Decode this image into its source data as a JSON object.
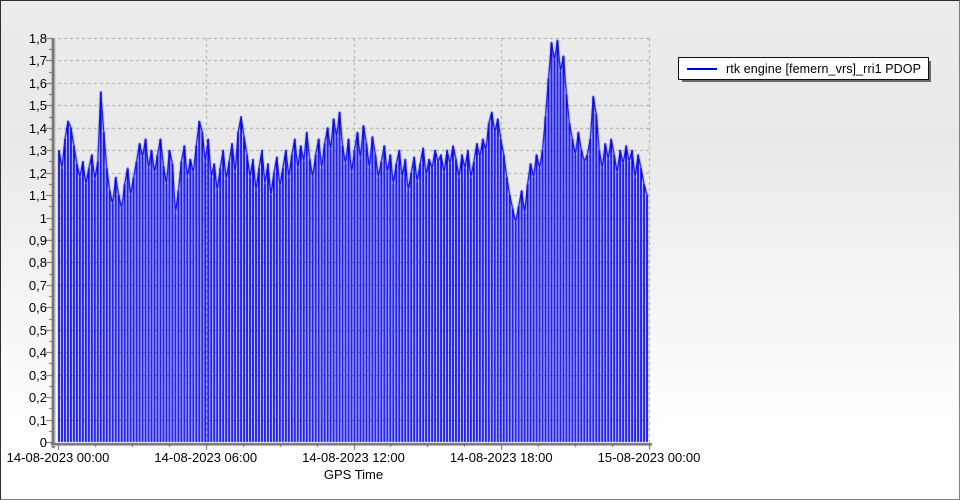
{
  "window": {
    "bg_top_color": "#ececec",
    "bg_bottom_color": "#ffffff",
    "border_color": "#2f2f2f"
  },
  "legend": {
    "label": "rtk engine [femern_vrs]_rri1 PDOP",
    "line_color": "#0000e8",
    "box_bg": "#ffffff",
    "position": "top-right"
  },
  "chart_data": {
    "type": "line",
    "title": "",
    "xlabel": "GPS Time",
    "ylabel": "",
    "x_time_start": "14-08-2023 00:00",
    "x_time_end": "15-08-2023 00:00",
    "x_tick_labels": [
      "14-08-2023 00:00",
      "14-08-2023 06:00",
      "14-08-2023 12:00",
      "14-08-2023 18:00",
      "15-08-2023 00:00"
    ],
    "x_minor_ticks_per_interval": 3,
    "y_tick_labels": [
      "0",
      "0,1",
      "0,2",
      "0,3",
      "0,4",
      "0,5",
      "0,6",
      "0,7",
      "0,8",
      "0,9",
      "1",
      "1,1",
      "1,2",
      "1,3",
      "1,4",
      "1,5",
      "1,6",
      "1,7",
      "1,8"
    ],
    "y_tick_step": 0.1,
    "ylim": [
      0,
      1.8
    ],
    "grid": "dashed",
    "grid_color": "#aaaaaa",
    "axis_color": "#6a6a6a",
    "sample_interval_minutes": 7.3,
    "series": [
      {
        "name": "rtk engine [femern_vrs]_rri1 PDOP",
        "color": "#0000e8",
        "drops_to_zero_between_samples": true,
        "values": [
          1.3,
          1.22,
          1.35,
          1.43,
          1.4,
          1.32,
          1.24,
          1.18,
          1.25,
          1.15,
          1.22,
          1.28,
          1.17,
          1.25,
          1.56,
          1.38,
          1.22,
          1.12,
          1.06,
          1.18,
          1.1,
          1.04,
          1.15,
          1.22,
          1.1,
          1.18,
          1.25,
          1.33,
          1.27,
          1.35,
          1.22,
          1.3,
          1.2,
          1.28,
          1.35,
          1.23,
          1.15,
          1.3,
          1.24,
          1.02,
          1.12,
          1.25,
          1.32,
          1.18,
          1.26,
          1.2,
          1.32,
          1.43,
          1.38,
          1.25,
          1.35,
          1.18,
          1.24,
          1.12,
          1.22,
          1.3,
          1.17,
          1.25,
          1.33,
          1.2,
          1.38,
          1.45,
          1.36,
          1.28,
          1.18,
          1.26,
          1.12,
          1.22,
          1.3,
          1.15,
          1.24,
          1.1,
          1.2,
          1.27,
          1.14,
          1.22,
          1.3,
          1.18,
          1.28,
          1.35,
          1.22,
          1.32,
          1.25,
          1.38,
          1.26,
          1.18,
          1.28,
          1.35,
          1.22,
          1.33,
          1.4,
          1.3,
          1.44,
          1.36,
          1.47,
          1.32,
          1.24,
          1.35,
          1.2,
          1.3,
          1.38,
          1.26,
          1.41,
          1.33,
          1.22,
          1.36,
          1.28,
          1.18,
          1.25,
          1.32,
          1.2,
          1.28,
          1.15,
          1.24,
          1.3,
          1.18,
          1.26,
          1.12,
          1.2,
          1.27,
          1.16,
          1.24,
          1.31,
          1.19,
          1.26,
          1.22,
          1.3,
          1.25,
          1.28,
          1.2,
          1.3,
          1.24,
          1.32,
          1.26,
          1.18,
          1.28,
          1.22,
          1.3,
          1.18,
          1.25,
          1.33,
          1.27,
          1.35,
          1.3,
          1.42,
          1.47,
          1.38,
          1.44,
          1.35,
          1.28,
          1.18,
          1.1,
          1.04,
          0.98,
          1.05,
          1.12,
          1.02,
          1.15,
          1.24,
          1.18,
          1.28,
          1.22,
          1.3,
          1.45,
          1.62,
          1.78,
          1.7,
          1.79,
          1.65,
          1.72,
          1.55,
          1.42,
          1.35,
          1.28,
          1.38,
          1.3,
          1.25,
          1.28,
          1.35,
          1.54,
          1.46,
          1.3,
          1.22,
          1.33,
          1.26,
          1.35,
          1.28,
          1.2,
          1.3,
          1.24,
          1.32,
          1.25,
          1.3,
          1.18,
          1.28,
          1.22,
          1.15,
          1.1
        ]
      }
    ]
  }
}
